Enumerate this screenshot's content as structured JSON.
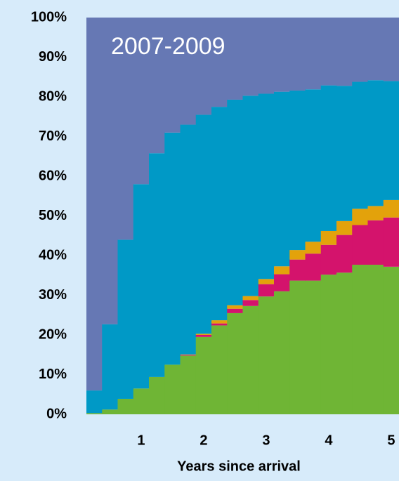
{
  "chart_data": {
    "type": "stacked_step_area",
    "annotation": "2007-2009",
    "x_label": "Years since arrival",
    "x": [
      0.25,
      0.5,
      0.75,
      1.0,
      1.25,
      1.5,
      1.75,
      2.0,
      2.25,
      2.5,
      2.75,
      3.0,
      3.25,
      3.5,
      3.75,
      4.0,
      4.25,
      4.5,
      4.75,
      5.0
    ],
    "series": [
      {
        "color": "#6fb535",
        "values": [
          0.3,
          1.2,
          3.9,
          6.5,
          9.4,
          12.5,
          14.8,
          19.5,
          22.4,
          25.5,
          27.3,
          29.7,
          31,
          33.7,
          33.7,
          35.2,
          35.7,
          37.7,
          37.7,
          37.2
        ]
      },
      {
        "color": "#d4136c",
        "values": [
          0,
          0,
          0,
          0,
          0,
          0,
          0.2,
          0.5,
          0.5,
          1.1,
          1.5,
          3.1,
          4.3,
          5.3,
          6.8,
          7.5,
          9.5,
          10,
          11.2,
          12.4
        ]
      },
      {
        "color": "#e3a20b",
        "values": [
          0,
          0,
          0,
          0,
          0,
          0,
          0.1,
          0.3,
          0.8,
          0.9,
          1.0,
          1.3,
          2.0,
          2.4,
          3.0,
          3.5,
          3.5,
          4.1,
          3.6,
          4.4
        ]
      },
      {
        "color": "#0099c6",
        "values": [
          5.7,
          21.5,
          40.1,
          51.5,
          56.4,
          58.5,
          57.9,
          55.2,
          53.8,
          51.8,
          50.5,
          46.7,
          44,
          40.2,
          38.4,
          36.7,
          34.1,
          32,
          31.7,
          30
        ]
      },
      {
        "color": "#6678b4",
        "values": [
          94,
          77.3,
          56,
          42,
          34.2,
          29,
          27,
          24.5,
          22.5,
          20.7,
          19.7,
          19.2,
          18.7,
          18.4,
          18.1,
          17.1,
          17.2,
          16.2,
          15.8,
          16
        ]
      }
    ],
    "xlim": [
      0.125,
      5.125
    ],
    "xticks": [
      1,
      2,
      3,
      4,
      5
    ],
    "ylim": [
      0,
      100
    ],
    "yticks": [
      {
        "value": 0,
        "label": "0%"
      },
      {
        "value": 10,
        "label": "10%"
      },
      {
        "value": 20,
        "label": "20%"
      },
      {
        "value": 30,
        "label": "30%"
      },
      {
        "value": 40,
        "label": "40%"
      },
      {
        "value": 50,
        "label": "50%"
      },
      {
        "value": 60,
        "label": "60%"
      },
      {
        "value": 70,
        "label": "70%"
      },
      {
        "value": 80,
        "label": "80%"
      },
      {
        "value": 90,
        "label": "90%"
      },
      {
        "value": 100,
        "label": "100%"
      }
    ]
  }
}
